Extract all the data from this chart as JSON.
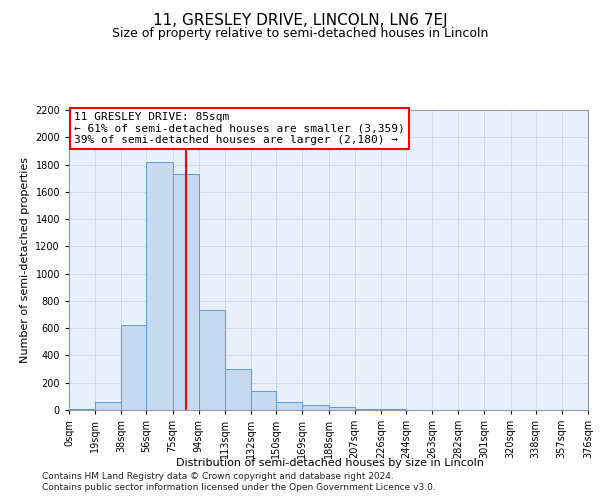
{
  "title": "11, GRESLEY DRIVE, LINCOLN, LN6 7EJ",
  "subtitle": "Size of property relative to semi-detached houses in Lincoln",
  "xlabel": "Distribution of semi-detached houses by size in Lincoln",
  "ylabel": "Number of semi-detached properties",
  "footer_line1": "Contains HM Land Registry data © Crown copyright and database right 2024.",
  "footer_line2": "Contains public sector information licensed under the Open Government Licence v3.0.",
  "annotation_title": "11 GRESLEY DRIVE: 85sqm",
  "annotation_line1": "← 61% of semi-detached houses are smaller (3,359)",
  "annotation_line2": "39% of semi-detached houses are larger (2,180) →",
  "property_size": 85,
  "bin_edges": [
    0,
    19,
    38,
    56,
    75,
    94,
    113,
    132,
    150,
    169,
    188,
    207,
    226,
    244,
    263,
    282,
    301,
    320,
    338,
    357,
    376
  ],
  "bin_labels": [
    "0sqm",
    "19sqm",
    "38sqm",
    "56sqm",
    "75sqm",
    "94sqm",
    "113sqm",
    "132sqm",
    "150sqm",
    "169sqm",
    "188sqm",
    "207sqm",
    "226sqm",
    "244sqm",
    "263sqm",
    "282sqm",
    "301sqm",
    "320sqm",
    "338sqm",
    "357sqm",
    "376sqm"
  ],
  "bar_heights": [
    5,
    60,
    620,
    1820,
    1730,
    730,
    300,
    140,
    60,
    35,
    20,
    10,
    5,
    2,
    0,
    0,
    0,
    0,
    0,
    0
  ],
  "bar_color": "#c5d9f0",
  "bar_edge_color": "#5b9bd5",
  "vline_x": 85,
  "vline_color": "red",
  "ylim": [
    0,
    2200
  ],
  "yticks": [
    0,
    200,
    400,
    600,
    800,
    1000,
    1200,
    1400,
    1600,
    1800,
    2000,
    2200
  ],
  "grid_color": "#c8d8e8",
  "bg_color": "#e8f0fb",
  "annotation_box_color": "white",
  "annotation_box_edge": "red",
  "title_fontsize": 11,
  "subtitle_fontsize": 9,
  "axis_label_fontsize": 8,
  "tick_fontsize": 7,
  "annotation_fontsize": 8,
  "footer_fontsize": 6.5
}
